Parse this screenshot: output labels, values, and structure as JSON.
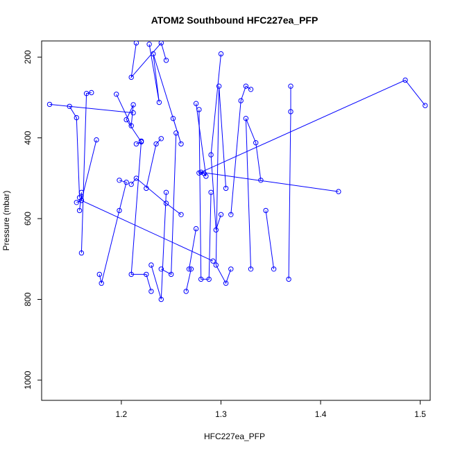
{
  "chart_data": {
    "type": "line",
    "title": "ATOM2 Southbound HFC227ea_PFP",
    "xlabel": "HFC227ea_PFP",
    "ylabel": "Pressure (mbar)",
    "xlim": [
      1.12,
      1.51
    ],
    "ylim": [
      1050,
      160
    ],
    "y_reversed": true,
    "x_ticks": [
      "1.2",
      "1.3",
      "1.4",
      "1.5"
    ],
    "y_ticks": [
      "200",
      "400",
      "600",
      "800",
      "1000"
    ],
    "color": "#0000ff",
    "marker": "open-circle",
    "series": [
      {
        "points": [
          [
            1.16,
            685
          ],
          [
            1.165,
            290
          ],
          [
            1.17,
            288
          ]
        ]
      },
      {
        "points": [
          [
            1.158,
            580
          ],
          [
            1.16,
            535
          ],
          [
            1.16,
            555
          ],
          [
            1.155,
            560
          ]
        ]
      },
      {
        "points": [
          [
            1.148,
            322
          ],
          [
            1.155,
            350
          ],
          [
            1.158,
            548
          ]
        ]
      },
      {
        "points": [
          [
            1.128,
            317
          ],
          [
            1.212,
            338
          ]
        ]
      },
      {
        "points": [
          [
            1.175,
            405
          ],
          [
            1.16,
            555
          ],
          [
            1.292,
            705
          ]
        ]
      },
      {
        "points": [
          [
            1.178,
            738
          ],
          [
            1.18,
            760
          ],
          [
            1.198,
            580
          ],
          [
            1.205,
            510
          ],
          [
            1.198,
            505
          ]
        ]
      },
      {
        "points": [
          [
            1.195,
            292
          ],
          [
            1.21,
            370
          ],
          [
            1.212,
            318
          ],
          [
            1.205,
            355
          ],
          [
            1.22,
            410
          ],
          [
            1.215,
            415
          ]
        ]
      },
      {
        "points": [
          [
            1.21,
            515
          ],
          [
            1.215,
            500
          ],
          [
            1.245,
            562
          ],
          [
            1.26,
            590
          ]
        ]
      },
      {
        "points": [
          [
            1.215,
            165
          ],
          [
            1.21,
            250
          ],
          [
            1.24,
            165
          ],
          [
            1.245,
            208
          ]
        ]
      },
      {
        "points": [
          [
            1.22,
            408
          ],
          [
            1.21,
            738
          ],
          [
            1.225,
            738
          ],
          [
            1.23,
            780
          ]
        ]
      },
      {
        "points": [
          [
            1.225,
            525
          ],
          [
            1.235,
            415
          ],
          [
            1.24,
            402
          ]
        ]
      },
      {
        "points": [
          [
            1.228,
            168
          ],
          [
            1.238,
            312
          ],
          [
            1.232,
            192
          ],
          [
            1.26,
            415
          ],
          [
            1.252,
            352
          ]
        ]
      },
      {
        "points": [
          [
            1.23,
            715
          ],
          [
            1.24,
            800
          ],
          [
            1.245,
            535
          ]
        ]
      },
      {
        "points": [
          [
            1.24,
            725
          ],
          [
            1.25,
            738
          ],
          [
            1.255,
            388
          ]
        ]
      },
      {
        "points": [
          [
            1.265,
            780
          ],
          [
            1.27,
            725
          ],
          [
            1.268,
            725
          ],
          [
            1.275,
            625
          ]
        ]
      },
      {
        "points": [
          [
            1.275,
            315
          ],
          [
            1.285,
            495
          ],
          [
            1.283,
            488
          ],
          [
            1.278,
            487
          ]
        ]
      },
      {
        "points": [
          [
            1.278,
            330
          ],
          [
            1.28,
            750
          ],
          [
            1.288,
            750
          ],
          [
            1.29,
            535
          ]
        ]
      },
      {
        "points": [
          [
            1.3,
            192
          ],
          [
            1.29,
            442
          ],
          [
            1.295,
            628
          ],
          [
            1.3,
            590
          ]
        ]
      },
      {
        "points": [
          [
            1.305,
            525
          ],
          [
            1.298,
            272
          ],
          [
            1.295,
            715
          ],
          [
            1.305,
            760
          ],
          [
            1.31,
            725
          ]
        ]
      },
      {
        "points": [
          [
            1.31,
            590
          ],
          [
            1.32,
            308
          ],
          [
            1.325,
            272
          ],
          [
            1.33,
            280
          ]
        ]
      },
      {
        "points": [
          [
            1.33,
            725
          ],
          [
            1.325,
            352
          ],
          [
            1.335,
            412
          ],
          [
            1.34,
            505
          ]
        ]
      },
      {
        "points": [
          [
            1.345,
            580
          ],
          [
            1.353,
            725
          ]
        ]
      },
      {
        "points": [
          [
            1.368,
            750
          ],
          [
            1.37,
            335
          ],
          [
            1.37,
            272
          ]
        ]
      },
      {
        "points": [
          [
            1.418,
            533
          ],
          [
            1.28,
            485
          ],
          [
            1.485,
            257
          ],
          [
            1.505,
            320
          ]
        ]
      }
    ]
  }
}
